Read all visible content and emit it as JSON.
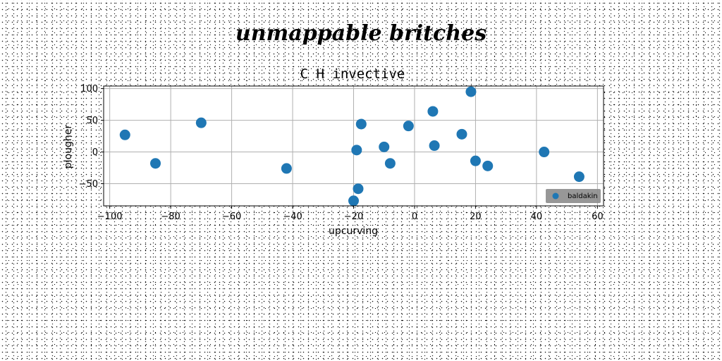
{
  "figure_title": "unmappable britches",
  "chart_data": {
    "type": "scatter",
    "title": "C H invective",
    "xlabel": "upcurving",
    "ylabel": "plougher",
    "xlim": [
      -102,
      62
    ],
    "ylim": [
      -85,
      104
    ],
    "xticks": [
      -100,
      -80,
      -60,
      -40,
      -20,
      0,
      20,
      40,
      60
    ],
    "yticks": [
      -50,
      0,
      50,
      100
    ],
    "grid": true,
    "legend_position": "lower-right",
    "series": [
      {
        "name": "baldakin",
        "color": "#1f77b4",
        "points": [
          {
            "x": -95,
            "y": 27
          },
          {
            "x": -85,
            "y": -18
          },
          {
            "x": -70,
            "y": 46
          },
          {
            "x": -42,
            "y": -26
          },
          {
            "x": -20,
            "y": -77
          },
          {
            "x": -18.5,
            "y": -58
          },
          {
            "x": -19,
            "y": 3
          },
          {
            "x": -17.5,
            "y": 44
          },
          {
            "x": -10,
            "y": 8
          },
          {
            "x": -8,
            "y": -18
          },
          {
            "x": -2,
            "y": 41
          },
          {
            "x": 6,
            "y": 64
          },
          {
            "x": 6.5,
            "y": 10
          },
          {
            "x": 15.5,
            "y": 28
          },
          {
            "x": 18.5,
            "y": 95
          },
          {
            "x": 20,
            "y": -14
          },
          {
            "x": 24,
            "y": -22
          },
          {
            "x": 42.5,
            "y": 0
          },
          {
            "x": 54,
            "y": -39
          }
        ]
      }
    ]
  }
}
